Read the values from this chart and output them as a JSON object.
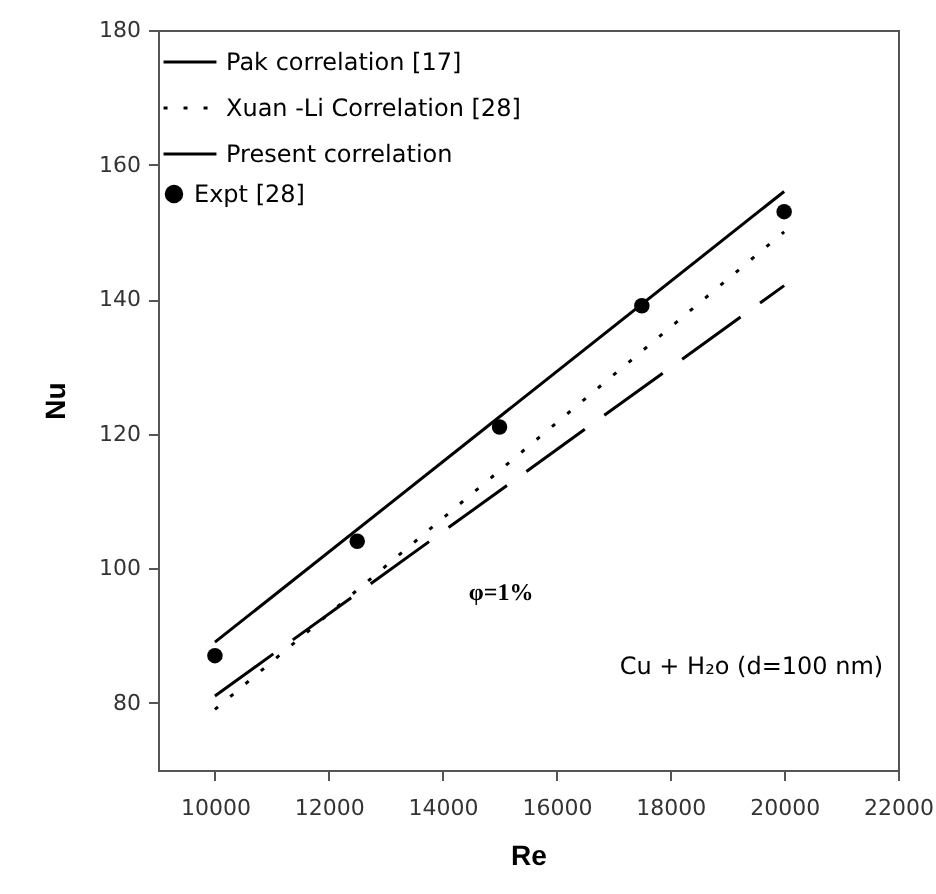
{
  "chart_data": {
    "type": "line",
    "xlabel": "Re",
    "ylabel": "Nu",
    "xlim": [
      9000,
      22000
    ],
    "xticks": [
      10000,
      12000,
      14000,
      16000,
      18000,
      20000,
      22000
    ],
    "ylim": [
      70,
      180
    ],
    "yticks": [
      80,
      100,
      120,
      140,
      160,
      180
    ],
    "grid": false,
    "legend": "top left",
    "series": [
      {
        "name": "Pak correlation [17]",
        "color": "#000000",
        "line_style": "solid",
        "x": [
          10000,
          20000
        ],
        "values": [
          89,
          156
        ]
      },
      {
        "name": "Xuan -Li Correlation [28]",
        "color": "#000000",
        "line_style": "dotted",
        "x": [
          10000,
          20000
        ],
        "values": [
          79,
          150
        ]
      },
      {
        "name": "Present correlation",
        "color": "#000000",
        "line_style": "dashed",
        "x": [
          10000,
          20000
        ],
        "values": [
          81,
          142
        ]
      },
      {
        "name": "Expt [28]",
        "type": "scatter",
        "marker": "circle",
        "color": "#000000",
        "x": [
          10000,
          12500,
          15000,
          17500,
          20000
        ],
        "values": [
          87,
          104,
          121,
          139,
          153
        ]
      }
    ],
    "annotations": [
      "φ=1%",
      "Cu + H₂o (d=100 nm)"
    ]
  }
}
